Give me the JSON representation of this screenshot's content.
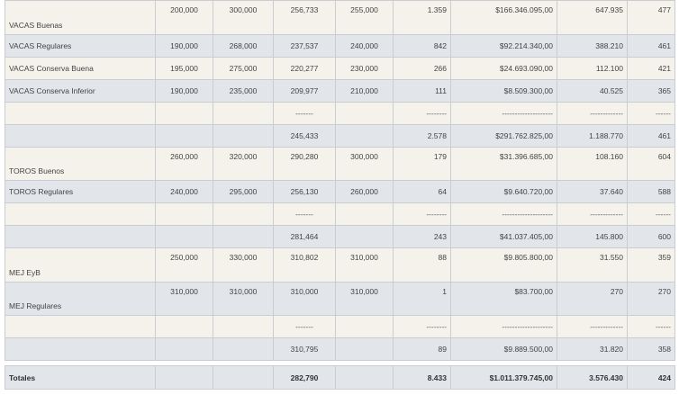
{
  "rows": [
    {
      "kind": "light",
      "layout": "split",
      "name": "VACAS Buenas",
      "c1": "200,000",
      "c2": "300,000",
      "c3": "256,733",
      "c4": "255,000",
      "c5": "1.359",
      "c6": "$166.346.095,00",
      "c7": "647.935",
      "c8": "477"
    },
    {
      "kind": "gray",
      "layout": "mid",
      "name": "VACAS Regulares",
      "c1": "190,000",
      "c2": "268,000",
      "c3": "237,537",
      "c4": "240,000",
      "c5": "842",
      "c6": "$92.214.340,00",
      "c7": "388.210",
      "c8": "461"
    },
    {
      "kind": "light",
      "layout": "mid",
      "name": "VACAS Conserva Buena",
      "c1": "195,000",
      "c2": "275,000",
      "c3": "220,277",
      "c4": "230,000",
      "c5": "266",
      "c6": "$24.693.090,00",
      "c7": "112.100",
      "c8": "421"
    },
    {
      "kind": "gray",
      "layout": "mid",
      "name": "VACAS Conserva Inferior",
      "c1": "190,000",
      "c2": "235,000",
      "c3": "209,977",
      "c4": "210,000",
      "c5": "111",
      "c6": "$8.509.300,00",
      "c7": "40.525",
      "c8": "365"
    },
    {
      "kind": "light",
      "layout": "dash",
      "name": "",
      "c1": "",
      "c2": "",
      "c3": "-------",
      "c4": "",
      "c5": "--------",
      "c6": "--------------------",
      "c7": "-------------",
      "c8": "------"
    },
    {
      "kind": "gray",
      "layout": "mid",
      "name": "",
      "c1": "",
      "c2": "",
      "c3": "245,433",
      "c4": "",
      "c5": "2.578",
      "c6": "$291.762.825,00",
      "c7": "1.188.770",
      "c8": "461"
    },
    {
      "kind": "light",
      "layout": "split",
      "name": "TOROS Buenos",
      "c1": "260,000",
      "c2": "320,000",
      "c3": "290,280",
      "c4": "300,000",
      "c5": "179",
      "c6": "$31.396.685,00",
      "c7": "108.160",
      "c8": "604"
    },
    {
      "kind": "gray",
      "layout": "mid",
      "name": "TOROS Regulares",
      "c1": "240,000",
      "c2": "295,000",
      "c3": "256,130",
      "c4": "260,000",
      "c5": "64",
      "c6": "$9.640.720,00",
      "c7": "37.640",
      "c8": "588"
    },
    {
      "kind": "light",
      "layout": "dash",
      "name": "",
      "c1": "",
      "c2": "",
      "c3": "-------",
      "c4": "",
      "c5": "--------",
      "c6": "--------------------",
      "c7": "-------------",
      "c8": "------"
    },
    {
      "kind": "gray",
      "layout": "mid",
      "name": "",
      "c1": "",
      "c2": "",
      "c3": "281,464",
      "c4": "",
      "c5": "243",
      "c6": "$41.037.405,00",
      "c7": "145.800",
      "c8": "600"
    },
    {
      "kind": "light",
      "layout": "split",
      "name": "MEJ EyB",
      "c1": "250,000",
      "c2": "330,000",
      "c3": "310,802",
      "c4": "310,000",
      "c5": "88",
      "c6": "$9.805.800,00",
      "c7": "31.550",
      "c8": "359"
    },
    {
      "kind": "gray",
      "layout": "split",
      "name": "MEJ Regulares",
      "c1": "310,000",
      "c2": "310,000",
      "c3": "310,000",
      "c4": "310,000",
      "c5": "1",
      "c6": "$83.700,00",
      "c7": "270",
      "c8": "270"
    },
    {
      "kind": "light",
      "layout": "dash",
      "name": "",
      "c1": "",
      "c2": "",
      "c3": "-------",
      "c4": "",
      "c5": "--------",
      "c6": "--------------------",
      "c7": "-------------",
      "c8": "------"
    },
    {
      "kind": "gray",
      "layout": "mid",
      "name": "",
      "c1": "",
      "c2": "",
      "c3": "310,795",
      "c4": "",
      "c5": "89",
      "c6": "$9.889.500,00",
      "c7": "31.820",
      "c8": "358"
    }
  ],
  "totals": {
    "name": "Totales",
    "c1": "",
    "c2": "",
    "c3": "282,790",
    "c4": "",
    "c5": "8.433",
    "c6": "$1.011.379.745,00",
    "c7": "3.576.430",
    "c8": "424"
  }
}
